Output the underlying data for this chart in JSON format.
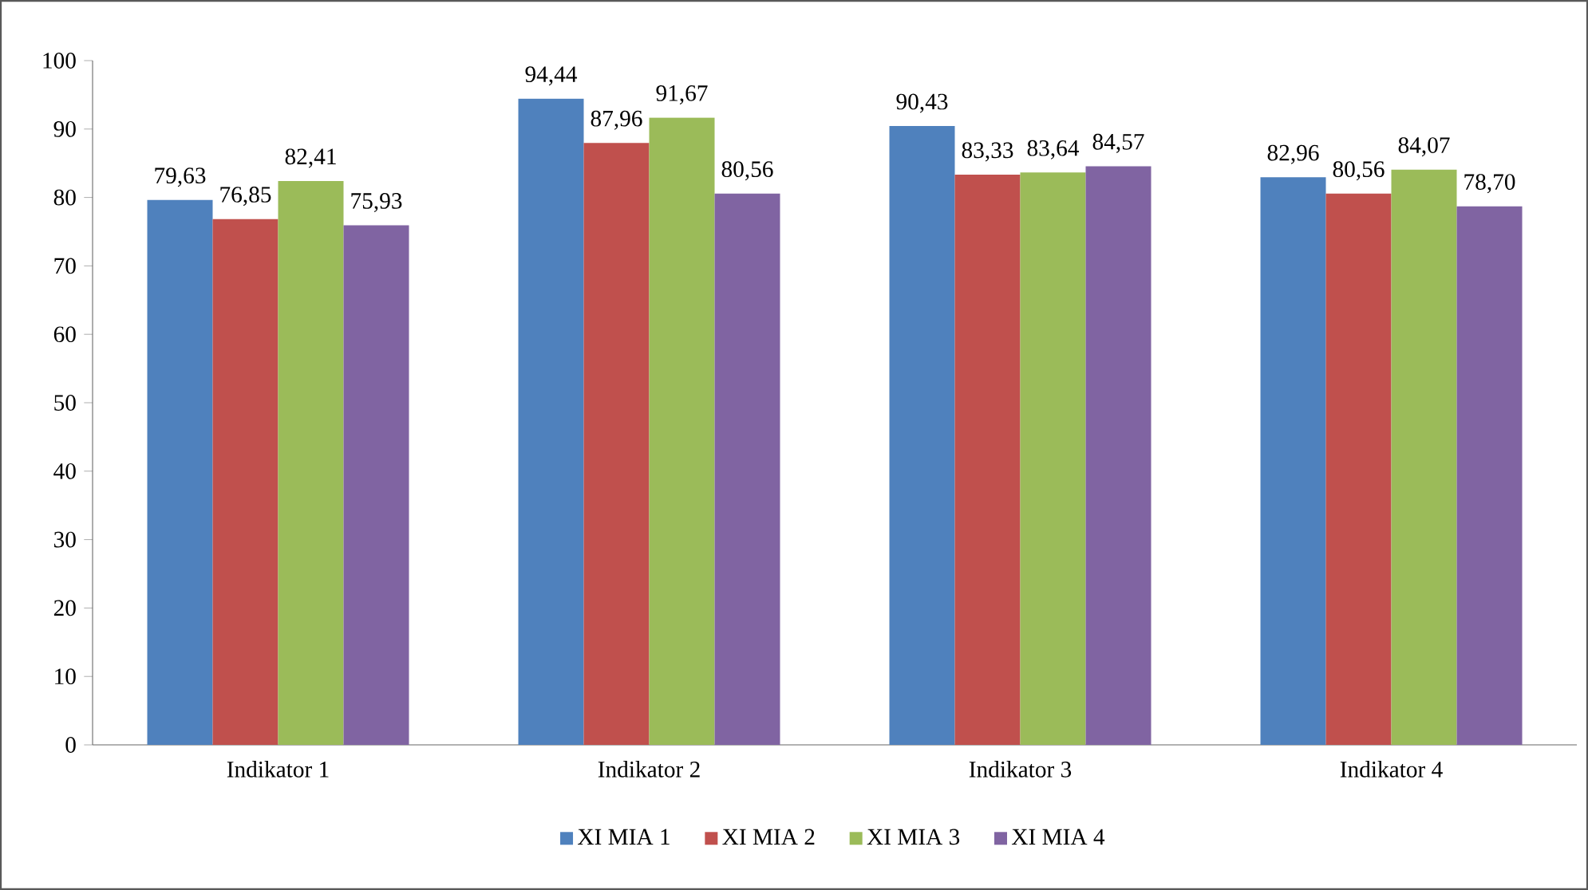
{
  "chart_data": {
    "type": "bar",
    "categories": [
      "Indikator 1",
      "Indikator 2",
      "Indikator 3",
      "Indikator 4"
    ],
    "series": [
      {
        "name": "XI MIA 1",
        "color": "#4f81bd",
        "values": [
          79.63,
          94.44,
          90.43,
          82.96
        ],
        "value_labels": [
          "79,63",
          "94,44",
          "90,43",
          "82,96"
        ]
      },
      {
        "name": "XI MIA 2",
        "color": "#c0504d",
        "values": [
          76.85,
          87.96,
          83.33,
          80.56
        ],
        "value_labels": [
          "76,85",
          "87,96",
          "83,33",
          "80,56"
        ]
      },
      {
        "name": "XI MIA 3",
        "color": "#9bbb59",
        "values": [
          82.41,
          91.67,
          83.64,
          84.07
        ],
        "value_labels": [
          "82,41",
          "91,67",
          "83,64",
          "84,07"
        ]
      },
      {
        "name": "XI MIA 4",
        "color": "#8064a2",
        "values": [
          75.93,
          80.56,
          84.57,
          78.7
        ],
        "value_labels": [
          "75,93",
          "80,56",
          "84,57",
          "78,70"
        ]
      }
    ],
    "ylim": [
      0,
      100
    ],
    "yticks": [
      0,
      10,
      20,
      30,
      40,
      50,
      60,
      70,
      80,
      90,
      100
    ],
    "grid": false,
    "legend": "bottom"
  }
}
